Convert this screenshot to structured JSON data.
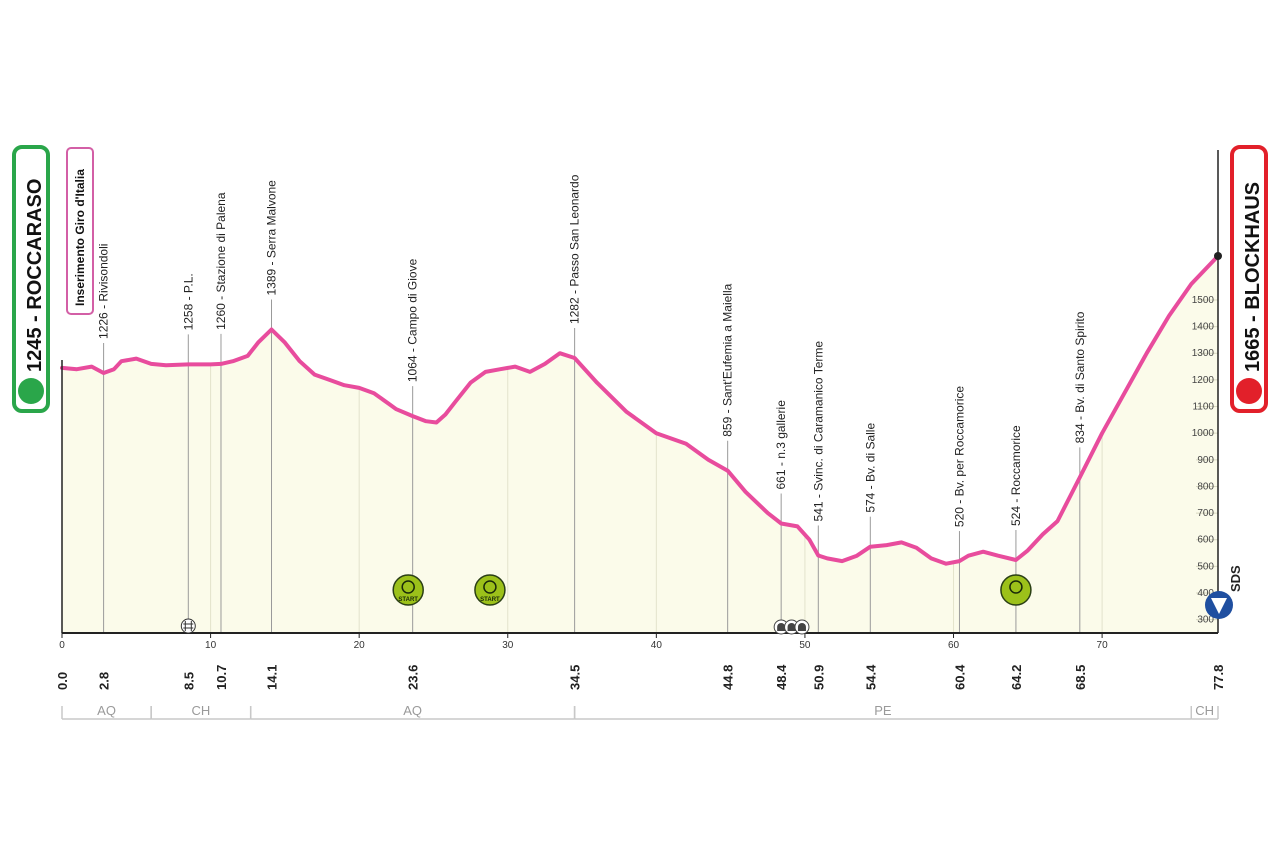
{
  "chart_data": {
    "type": "area",
    "x_unit": "km",
    "xlim": [
      0,
      77.8
    ],
    "ylim": [
      250,
      1680
    ],
    "x_ticks": [
      0,
      10,
      20,
      30,
      40,
      50,
      60,
      70
    ],
    "y_ticks": [
      300,
      400,
      500,
      600,
      700,
      800,
      900,
      1000,
      1100,
      1200,
      1300,
      1400,
      1500
    ],
    "profile": {
      "x": [
        0,
        1,
        2,
        2.8,
        3.5,
        4,
        5,
        6,
        7,
        8.5,
        10,
        10.7,
        11.5,
        12.5,
        13.2,
        14.1,
        15,
        16,
        17,
        18,
        19,
        20,
        21,
        22,
        22.5,
        23.6,
        24.5,
        25.2,
        25.8,
        26.5,
        27.5,
        28.5,
        29.5,
        30.5,
        31.5,
        32.5,
        33.5,
        34.5,
        36,
        38,
        40,
        42,
        43.5,
        44.8,
        46,
        47.5,
        48.4,
        49.5,
        50.3,
        50.9,
        51.5,
        52.5,
        53.5,
        54.4,
        55.5,
        56.5,
        57.5,
        58.5,
        59.5,
        60.4,
        61,
        62,
        63,
        64.2,
        65,
        66,
        67,
        68.5,
        70,
        71.5,
        73,
        74.5,
        76,
        77.8
      ],
      "y": [
        1245,
        1240,
        1250,
        1226,
        1240,
        1270,
        1280,
        1260,
        1255,
        1258,
        1258,
        1260,
        1270,
        1290,
        1340,
        1389,
        1340,
        1270,
        1220,
        1200,
        1180,
        1170,
        1150,
        1110,
        1090,
        1064,
        1045,
        1040,
        1070,
        1120,
        1190,
        1230,
        1240,
        1250,
        1230,
        1260,
        1300,
        1282,
        1190,
        1080,
        1000,
        960,
        900,
        859,
        780,
        700,
        661,
        650,
        600,
        541,
        530,
        520,
        540,
        574,
        580,
        590,
        570,
        530,
        510,
        520,
        540,
        555,
        540,
        524,
        560,
        620,
        670,
        834,
        1000,
        1150,
        1300,
        1440,
        1560,
        1665
      ]
    },
    "start": {
      "name": "ROCCARASO",
      "altitude": "1245",
      "km": "0.0"
    },
    "finish": {
      "name": "BLOCKHAUS",
      "altitude": "1665",
      "km": "77.8"
    },
    "insertion_label": "Inserimento Giro d'Italia",
    "waypoints": [
      {
        "km": "2.8",
        "x": 2.8,
        "label": "1226 - Rivisondoli"
      },
      {
        "km": "8.5",
        "x": 8.5,
        "label": "1258 - P.L."
      },
      {
        "km": "10.7",
        "x": 10.7,
        "label": "1260 - Stazione di Palena"
      },
      {
        "km": "14.1",
        "x": 14.1,
        "label": "1389 - Serra Malvone"
      },
      {
        "km": "23.6",
        "x": 23.6,
        "label": "1064 - Campo di Giove"
      },
      {
        "km": "34.5",
        "x": 34.5,
        "label": "1282 - Passo San Leonardo"
      },
      {
        "km": "44.8",
        "x": 44.8,
        "label": "859 - Sant'Eufemia a Maiella"
      },
      {
        "km": "48.4",
        "x": 48.4,
        "label": "661 - n.3 gallerie"
      },
      {
        "km": "50.9",
        "x": 50.9,
        "label": "541 - Svinc. di Caramanico Terme"
      },
      {
        "km": "54.4",
        "x": 54.4,
        "label": "574 - Bv. di Salle"
      },
      {
        "km": "60.4",
        "x": 60.4,
        "label": "520 - Bv. per Roccamorice"
      },
      {
        "km": "64.2",
        "x": 64.2,
        "label": "524 - Roccamorice"
      },
      {
        "km": "68.5",
        "x": 68.5,
        "label": "834 - Bv. di Santo Spirito"
      }
    ],
    "regions": [
      {
        "label": "AQ",
        "from": 0,
        "to": 6
      },
      {
        "label": "CH",
        "from": 6,
        "to": 12.7
      },
      {
        "label": "AQ",
        "from": 12.7,
        "to": 34.5
      },
      {
        "label": "PE",
        "from": 34.5,
        "to": 76
      },
      {
        "label": "CH",
        "from": 76,
        "to": 77.8
      }
    ],
    "bands": [
      {
        "type": "green",
        "from": 22.8,
        "to": 23.9,
        "color": "#9cc11a"
      },
      {
        "type": "blue",
        "from": 26.9,
        "to": 30.7,
        "color": "#0f2a5f"
      },
      {
        "type": "orange",
        "from": 64.0,
        "to": 64.4,
        "color": "#f7941d"
      }
    ],
    "markers": [
      {
        "icon": "start-sprint-icon",
        "x": 23.3,
        "text": "START",
        "color": "#9cc11a"
      },
      {
        "icon": "start-clock-icon",
        "x": 28.8,
        "text": "START",
        "color": "#9cc11a"
      },
      {
        "icon": "climb-bonus-icon",
        "x": 64.2,
        "color": "#9cc11a"
      },
      {
        "icon": "railway-crossing-icon",
        "x": 8.5
      },
      {
        "icon": "tunnel-icon",
        "x": 48.4
      },
      {
        "icon": "tunnel-icon",
        "x": 49.1
      },
      {
        "icon": "tunnel-icon",
        "x": 49.8
      }
    ],
    "brand": "SDS",
    "colors": {
      "profile_line": "#e84c9d",
      "area_fill": "#fbfbea",
      "start_badge": "#2aa64a",
      "finish_badge": "#e2202a"
    }
  }
}
